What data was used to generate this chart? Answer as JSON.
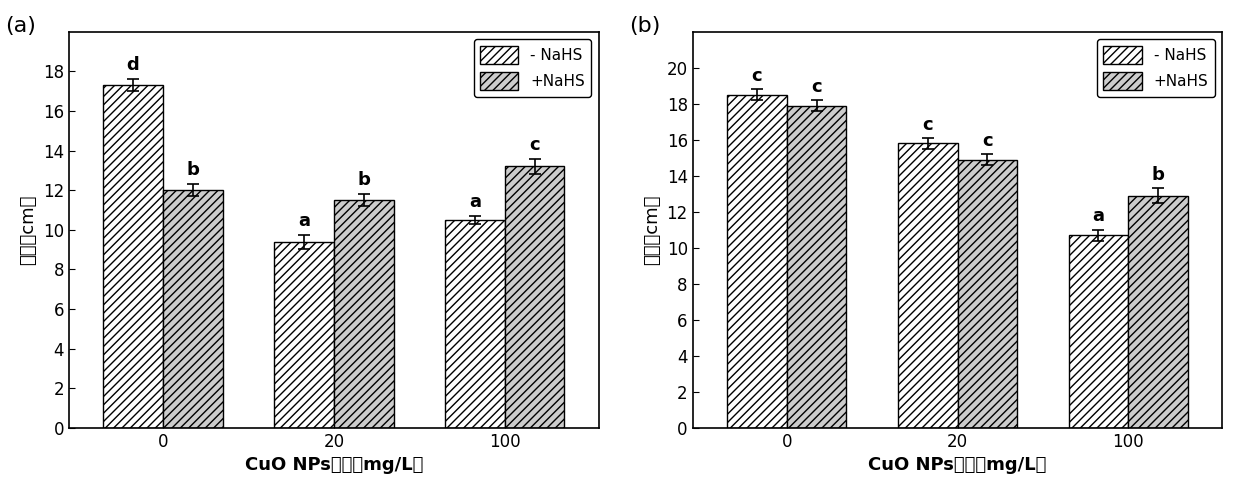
{
  "panel_a": {
    "title": "(a)",
    "ylabel": "根长（cm）",
    "xlabel": "CuO NPs浓度（mg/L）",
    "categories": [
      "0",
      "20",
      "100"
    ],
    "minus_nahs": [
      17.3,
      9.4,
      10.5
    ],
    "minus_nahs_err": [
      0.3,
      0.35,
      0.2
    ],
    "plus_nahs": [
      12.0,
      11.5,
      13.2
    ],
    "plus_nahs_err": [
      0.3,
      0.3,
      0.4
    ],
    "minus_labels": [
      "d",
      "a",
      "a"
    ],
    "plus_labels": [
      "b",
      "b",
      "c"
    ],
    "ylim": [
      0,
      20
    ],
    "yticks": [
      0,
      2,
      4,
      6,
      8,
      10,
      12,
      14,
      16,
      18
    ]
  },
  "panel_b": {
    "title": "(b)",
    "ylabel": "株高（cm）",
    "xlabel": "CuO NPs浓度（mg/L）",
    "categories": [
      "0",
      "20",
      "100"
    ],
    "minus_nahs": [
      18.5,
      15.8,
      10.7
    ],
    "minus_nahs_err": [
      0.3,
      0.3,
      0.3
    ],
    "plus_nahs": [
      17.9,
      14.9,
      12.9
    ],
    "plus_nahs_err": [
      0.3,
      0.3,
      0.4
    ],
    "minus_labels": [
      "c",
      "c",
      "a"
    ],
    "plus_labels": [
      "c",
      "c",
      "b"
    ],
    "ylim": [
      0,
      22
    ],
    "yticks": [
      0,
      2,
      4,
      6,
      8,
      10,
      12,
      14,
      16,
      18,
      20
    ]
  },
  "bar_width": 0.35,
  "hatch_minus": "////",
  "hatch_plus": "////",
  "facecolor_minus": "white",
  "facecolor_plus": "#cccccc",
  "edgecolor": "black",
  "legend_minus": "- NaHS",
  "legend_plus": "+NaHS",
  "label_fontsize": 13,
  "tick_fontsize": 12,
  "annotation_fontsize": 13,
  "panel_label_fontsize": 16
}
